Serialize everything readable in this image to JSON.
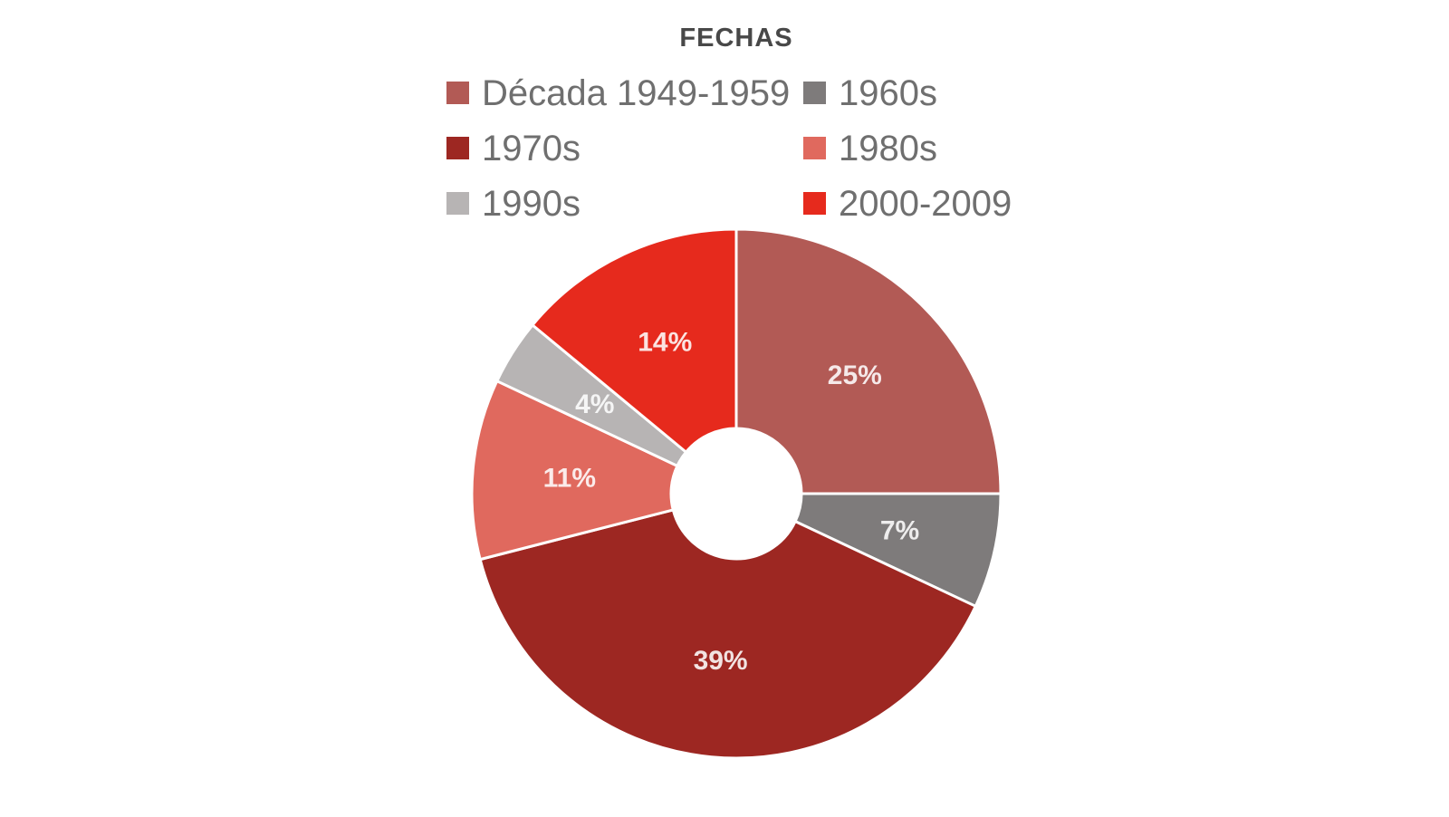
{
  "chart_data": {
    "type": "pie",
    "subtype": "donut",
    "title": "FECHAS",
    "direction": "clockwise",
    "start_angle_deg": 0,
    "hole_ratio": 0.25,
    "legend_position": "top-two-columns",
    "categories": [
      "Década 1949-1959",
      "1960s",
      "1970s",
      "1980s",
      "1990s",
      "2000-2009"
    ],
    "values": [
      25,
      7,
      39,
      11,
      4,
      14
    ],
    "data_labels": [
      "25%",
      "7%",
      "39%",
      "11%",
      "4%",
      "14%"
    ],
    "colors": [
      "#b25a55",
      "#7e7b7b",
      "#9d2722",
      "#e0695e",
      "#b7b4b4",
      "#e62a1d"
    ]
  },
  "styles": {
    "background": "#ffffff",
    "title_color": "#484848",
    "legend_text_color": "#6f6f6f",
    "data_label_color": "#ffffff"
  }
}
